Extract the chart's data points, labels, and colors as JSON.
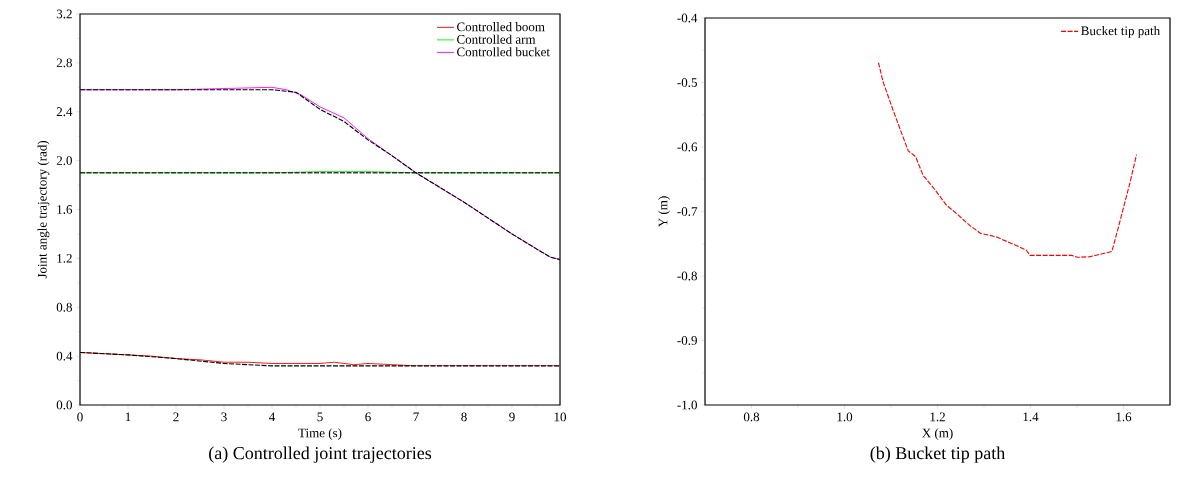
{
  "chart_data": [
    {
      "type": "line",
      "title": "(a) Controlled joint trajectories",
      "xlabel": "Time (s)",
      "ylabel": "Joint angle trajectory (rad)",
      "xlim": [
        0,
        10
      ],
      "ylim": [
        0,
        3.2
      ],
      "xticks": [
        0,
        1,
        2,
        3,
        4,
        5,
        6,
        7,
        8,
        9,
        10
      ],
      "yticks": [
        {
          "value": 0,
          "label": "0.0"
        },
        {
          "value": 0.4,
          "label": "0.4"
        },
        {
          "value": 0.8,
          "label": "0.8"
        },
        {
          "value": 1.2,
          "label": "1.2"
        },
        {
          "value": 1.6,
          "label": "1.6"
        },
        {
          "value": 2.0,
          "label": "2.0"
        },
        {
          "value": 2.4,
          "label": "2.4"
        },
        {
          "value": 2.8,
          "label": "2.8"
        },
        {
          "value": 3.2,
          "label": "3.2"
        }
      ],
      "legend": "top right",
      "series": [
        {
          "name": "Controlled boom",
          "color": "#ff0000",
          "line_style": "solid",
          "x": [
            0,
            0.5,
            1,
            1.5,
            2,
            2.5,
            3,
            3.5,
            4,
            4.5,
            5,
            5.3,
            5.7,
            6,
            6.5,
            7,
            8,
            9,
            10
          ],
          "values": [
            0.43,
            0.42,
            0.41,
            0.4,
            0.38,
            0.37,
            0.35,
            0.35,
            0.34,
            0.34,
            0.34,
            0.35,
            0.33,
            0.34,
            0.33,
            0.32,
            0.32,
            0.32,
            0.32
          ]
        },
        {
          "color": "#000000",
          "line_style": "dashed",
          "x": [
            0,
            1,
            2,
            3,
            3.5,
            4,
            5,
            6,
            7,
            8,
            9,
            10
          ],
          "values": [
            0.43,
            0.41,
            0.38,
            0.34,
            0.33,
            0.32,
            0.32,
            0.32,
            0.32,
            0.32,
            0.32,
            0.32
          ]
        },
        {
          "name": "Controlled arm",
          "color": "#00ee00",
          "line_style": "solid",
          "x": [
            0,
            2,
            4,
            5,
            5.5,
            6,
            7,
            8,
            10
          ],
          "values": [
            1.9,
            1.9,
            1.9,
            1.91,
            1.91,
            1.91,
            1.9,
            1.9,
            1.9
          ]
        },
        {
          "color": "#000000",
          "line_style": "dashed",
          "x": [
            0,
            10
          ],
          "values": [
            1.9,
            1.9
          ]
        },
        {
          "name": "Controlled bucket",
          "color": "#ff00ff",
          "line_style": "solid",
          "x": [
            0,
            1,
            2,
            3,
            4,
            4.3,
            4.6,
            4.8,
            5,
            5.5,
            6,
            6.5,
            7,
            7.5,
            8,
            8.5,
            9,
            9.5,
            9.8,
            10
          ],
          "values": [
            2.58,
            2.58,
            2.58,
            2.59,
            2.6,
            2.58,
            2.54,
            2.49,
            2.44,
            2.35,
            2.18,
            2.04,
            1.9,
            1.78,
            1.66,
            1.53,
            1.4,
            1.28,
            1.21,
            1.19
          ]
        },
        {
          "color": "#000000",
          "line_style": "dashed",
          "x": [
            0,
            4,
            4.5,
            5,
            5.5,
            6,
            6.5,
            7,
            7.5,
            8,
            8.5,
            9,
            9.5,
            9.8,
            10
          ],
          "values": [
            2.58,
            2.58,
            2.56,
            2.42,
            2.32,
            2.17,
            2.04,
            1.9,
            1.78,
            1.66,
            1.53,
            1.4,
            1.28,
            1.21,
            1.19
          ]
        }
      ]
    },
    {
      "type": "line",
      "title": "(b) Bucket tip path",
      "xlabel": "X (m)",
      "ylabel": "Y (m)",
      "xlim": [
        0.7,
        1.7
      ],
      "ylim": [
        -1.0,
        -0.4
      ],
      "xticks": [
        0.8,
        {
          "value": 1.0,
          "label": "1.0"
        },
        1.2,
        1.4,
        1.6
      ],
      "yticks": [
        {
          "value": -1.0,
          "label": "-1.0"
        },
        -0.9,
        -0.8,
        -0.7,
        -0.6,
        -0.5,
        -0.4
      ],
      "legend": "top right",
      "series": [
        {
          "name": "Bucket tip path",
          "color": "#ff0000",
          "line_style": "dashed",
          "x": [
            1.073,
            1.083,
            1.106,
            1.137,
            1.153,
            1.169,
            1.192,
            1.219,
            1.239,
            1.27,
            1.293,
            1.325,
            1.364,
            1.391,
            1.399,
            1.489,
            1.501,
            1.528,
            1.575,
            1.591,
            1.614,
            1.628
          ],
          "values": [
            -0.469,
            -0.499,
            -0.546,
            -0.606,
            -0.615,
            -0.644,
            -0.664,
            -0.69,
            -0.702,
            -0.722,
            -0.734,
            -0.739,
            -0.751,
            -0.76,
            -0.768,
            -0.768,
            -0.771,
            -0.77,
            -0.762,
            -0.719,
            -0.655,
            -0.612
          ]
        }
      ]
    }
  ]
}
